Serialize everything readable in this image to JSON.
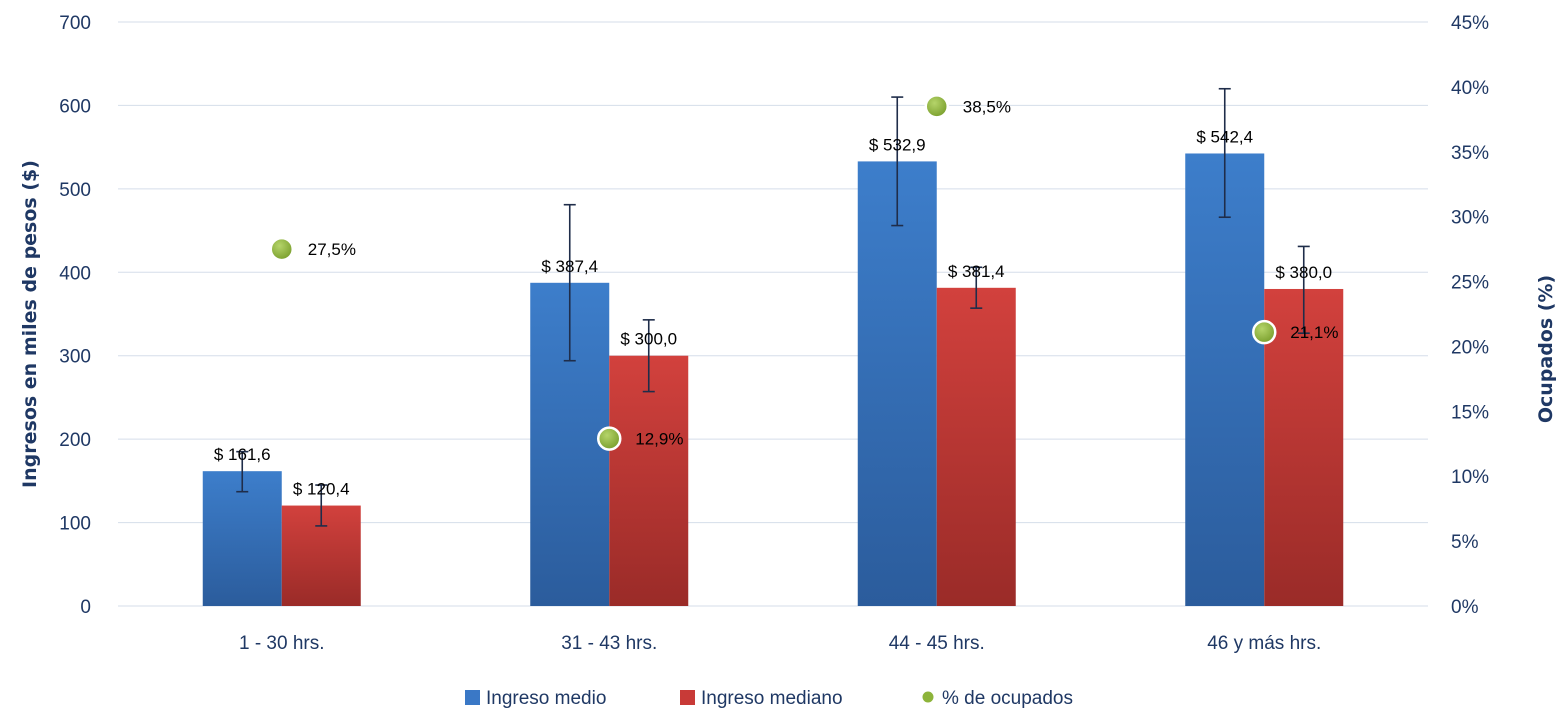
{
  "chart_data": {
    "type": "bar",
    "categories": [
      "1 - 30 hrs.",
      "31 - 43 hrs.",
      "44 - 45 hrs.",
      "46 y más hrs."
    ],
    "series": [
      {
        "name": "Ingreso medio",
        "axis": "left",
        "color": "#3A78C6",
        "values": [
          161.6,
          387.4,
          532.9,
          542.4
        ],
        "labels": [
          "$ 161,6",
          "$ 387,4",
          "$ 532,9",
          "$ 542,4"
        ],
        "error_low": [
          137,
          294,
          456,
          466
        ],
        "error_high": [
          185,
          481,
          610,
          620
        ]
      },
      {
        "name": "Ingreso mediano",
        "axis": "left",
        "color": "#C83A37",
        "values": [
          120.4,
          300.0,
          381.4,
          380.0
        ],
        "labels": [
          "$ 120,4",
          "$ 300,0",
          "$ 381,4",
          "$ 380,0"
        ],
        "error_low": [
          96,
          257,
          357,
          327
        ],
        "error_high": [
          145,
          343,
          406,
          431
        ]
      },
      {
        "name": "% de ocupados",
        "axis": "right",
        "type": "scatter",
        "color": "#8DB43A",
        "values": [
          27.5,
          12.9,
          38.5,
          21.1
        ],
        "labels": [
          "27,5%",
          "12,9%",
          "38,5%",
          "21,1%"
        ]
      }
    ],
    "ylabel": "Ingresos en miles de pesos ($)",
    "y2label": "Ocupados (%)",
    "ylim": [
      0,
      700
    ],
    "yticks": [
      "0",
      "100",
      "200",
      "300",
      "400",
      "500",
      "600",
      "700"
    ],
    "y2lim": [
      0,
      45
    ],
    "y2ticks": [
      "0%",
      "5%",
      "10%",
      "15%",
      "20%",
      "25%",
      "30%",
      "35%",
      "40%",
      "45%"
    ],
    "grid": true,
    "legend_position": "bottom"
  }
}
